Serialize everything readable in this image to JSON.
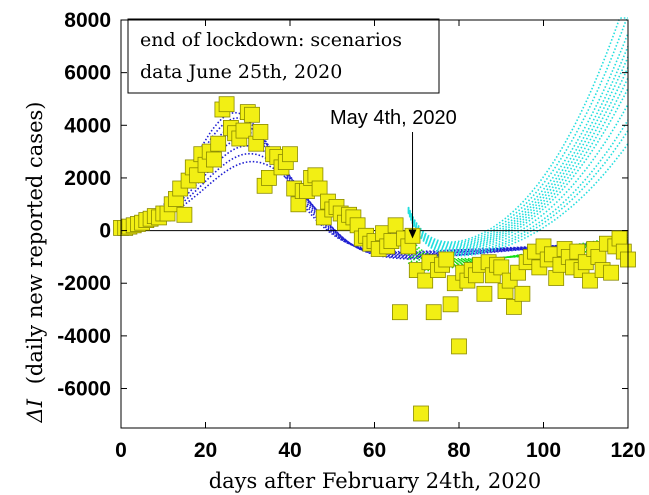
{
  "chart_data": {
    "type": "scatter",
    "xlabel": "days after February 24th, 2020",
    "ylabel_symbol": "ΔI",
    "ylabel_text": "(daily new reported cases)",
    "xlim": [
      0,
      120
    ],
    "ylim": [
      -7500,
      8000
    ],
    "x_ticks": [
      0,
      20,
      40,
      60,
      80,
      100,
      120
    ],
    "y_ticks": [
      -6000,
      -4000,
      -2000,
      0,
      2000,
      4000,
      6000,
      8000
    ],
    "x_tick_labels": [
      "0",
      "20",
      "40",
      "60",
      "80",
      "100",
      "120"
    ],
    "y_tick_labels": [
      "-6000",
      "-4000",
      "-2000",
      "0",
      "2000",
      "4000",
      "6000",
      "8000"
    ],
    "grid": false,
    "zero_line": true,
    "legend_box": {
      "line1": "end of lockdown: scenarios",
      "line2": "data June 25th, 2020",
      "placement": "top-left"
    },
    "annotation": {
      "text": "May 4th, 2020",
      "x": 69,
      "arrow_tip_y": -300
    },
    "colors": {
      "blue": "#1f1fd2",
      "green": "#14e014",
      "cyan": "#22dede",
      "marker_fill": "#f2ef14",
      "marker_edge": "#8a8a00"
    },
    "curves_blue": {
      "x_start": 0,
      "x_end": 120,
      "count": 8,
      "peaks": [
        4400,
        4200,
        3950,
        3700,
        3450,
        3150,
        2850,
        2550
      ],
      "peak_day": 27
    },
    "curves_green": {
      "x_start": 68,
      "x_end": 120,
      "count": 8,
      "base": -1200
    },
    "curves_cyan": {
      "x_start": 68,
      "x_end": 120,
      "count": 12,
      "end_values": [
        9000,
        8200,
        7500,
        7000,
        6600,
        6200,
        5800,
        5400,
        4800,
        4200,
        3800,
        3300
      ]
    },
    "points": [
      {
        "x": 0,
        "y": 100
      },
      {
        "x": 1,
        "y": 100
      },
      {
        "x": 2,
        "y": 150
      },
      {
        "x": 3,
        "y": 200
      },
      {
        "x": 4,
        "y": 250
      },
      {
        "x": 5,
        "y": 300
      },
      {
        "x": 6,
        "y": 400
      },
      {
        "x": 7,
        "y": 450
      },
      {
        "x": 8,
        "y": 550
      },
      {
        "x": 9,
        "y": 500
      },
      {
        "x": 10,
        "y": 650
      },
      {
        "x": 11,
        "y": 650
      },
      {
        "x": 12,
        "y": 1000
      },
      {
        "x": 13,
        "y": 1200
      },
      {
        "x": 14,
        "y": 1600
      },
      {
        "x": 15,
        "y": 600
      },
      {
        "x": 16,
        "y": 1900
      },
      {
        "x": 17,
        "y": 2400
      },
      {
        "x": 18,
        "y": 2100
      },
      {
        "x": 19,
        "y": 2900
      },
      {
        "x": 20,
        "y": 2500
      },
      {
        "x": 21,
        "y": 3000
      },
      {
        "x": 22,
        "y": 2700
      },
      {
        "x": 23,
        "y": 3300
      },
      {
        "x": 24,
        "y": 4600
      },
      {
        "x": 25,
        "y": 4800
      },
      {
        "x": 26,
        "y": 3900
      },
      {
        "x": 27,
        "y": 3700
      },
      {
        "x": 28,
        "y": 3500
      },
      {
        "x": 29,
        "y": 3800
      },
      {
        "x": 30,
        "y": 4500
      },
      {
        "x": 31,
        "y": 4400
      },
      {
        "x": 32,
        "y": 3300
      },
      {
        "x": 33,
        "y": 3750
      },
      {
        "x": 34,
        "y": 1700
      },
      {
        "x": 35,
        "y": 2000
      },
      {
        "x": 36,
        "y": 2900
      },
      {
        "x": 37,
        "y": 2800
      },
      {
        "x": 38,
        "y": 2400
      },
      {
        "x": 39,
        "y": 2600
      },
      {
        "x": 40,
        "y": 2900
      },
      {
        "x": 41,
        "y": 1600
      },
      {
        "x": 42,
        "y": 1000
      },
      {
        "x": 43,
        "y": 1500
      },
      {
        "x": 44,
        "y": 1500
      },
      {
        "x": 45,
        "y": 2000
      },
      {
        "x": 46,
        "y": 2100
      },
      {
        "x": 47,
        "y": 1600
      },
      {
        "x": 48,
        "y": 500
      },
      {
        "x": 49,
        "y": 1100
      },
      {
        "x": 50,
        "y": 800
      },
      {
        "x": 51,
        "y": 900
      },
      {
        "x": 52,
        "y": 650
      },
      {
        "x": 53,
        "y": 300
      },
      {
        "x": 54,
        "y": 600
      },
      {
        "x": 55,
        "y": 500
      },
      {
        "x": 56,
        "y": 200
      },
      {
        "x": 57,
        "y": -300
      },
      {
        "x": 58,
        "y": -200
      },
      {
        "x": 59,
        "y": -500
      },
      {
        "x": 60,
        "y": -400
      },
      {
        "x": 61,
        "y": -700
      },
      {
        "x": 62,
        "y": -100
      },
      {
        "x": 63,
        "y": -600
      },
      {
        "x": 64,
        "y": -400
      },
      {
        "x": 65,
        "y": 200
      },
      {
        "x": 66,
        "y": -3100
      },
      {
        "x": 67,
        "y": -300
      },
      {
        "x": 68,
        "y": -600
      },
      {
        "x": 69,
        "y": -200
      },
      {
        "x": 70,
        "y": -1500
      },
      {
        "x": 71,
        "y": -6950
      },
      {
        "x": 72,
        "y": -1900
      },
      {
        "x": 73,
        "y": -1200
      },
      {
        "x": 74,
        "y": -3100
      },
      {
        "x": 75,
        "y": -1500
      },
      {
        "x": 76,
        "y": -1300
      },
      {
        "x": 77,
        "y": -1100
      },
      {
        "x": 78,
        "y": -2800
      },
      {
        "x": 79,
        "y": -2000
      },
      {
        "x": 80,
        "y": -4400
      },
      {
        "x": 81,
        "y": -1600
      },
      {
        "x": 82,
        "y": -1900
      },
      {
        "x": 83,
        "y": -1500
      },
      {
        "x": 84,
        "y": -1700
      },
      {
        "x": 85,
        "y": -1300
      },
      {
        "x": 86,
        "y": -2400
      },
      {
        "x": 87,
        "y": -1200
      },
      {
        "x": 88,
        "y": -1700
      },
      {
        "x": 89,
        "y": -1300
      },
      {
        "x": 90,
        "y": -1400
      },
      {
        "x": 91,
        "y": -2300
      },
      {
        "x": 92,
        "y": -1900
      },
      {
        "x": 93,
        "y": -2900
      },
      {
        "x": 94,
        "y": -1600
      },
      {
        "x": 95,
        "y": -2400
      },
      {
        "x": 96,
        "y": -1200
      },
      {
        "x": 97,
        "y": -1000
      },
      {
        "x": 98,
        "y": -800
      },
      {
        "x": 99,
        "y": -1400
      },
      {
        "x": 100,
        "y": -600
      },
      {
        "x": 101,
        "y": -1100
      },
      {
        "x": 102,
        "y": -900
      },
      {
        "x": 103,
        "y": -1800
      },
      {
        "x": 104,
        "y": -1300
      },
      {
        "x": 105,
        "y": -700
      },
      {
        "x": 106,
        "y": -1000
      },
      {
        "x": 107,
        "y": -1400
      },
      {
        "x": 108,
        "y": -800
      },
      {
        "x": 109,
        "y": -1500
      },
      {
        "x": 110,
        "y": -1200
      },
      {
        "x": 111,
        "y": -1900
      },
      {
        "x": 112,
        "y": -700
      },
      {
        "x": 113,
        "y": -1000
      },
      {
        "x": 114,
        "y": -1500
      },
      {
        "x": 115,
        "y": -500
      },
      {
        "x": 116,
        "y": -1600
      },
      {
        "x": 117,
        "y": -600
      },
      {
        "x": 118,
        "y": -300
      },
      {
        "x": 119,
        "y": -800
      },
      {
        "x": 120,
        "y": -1100
      }
    ]
  }
}
